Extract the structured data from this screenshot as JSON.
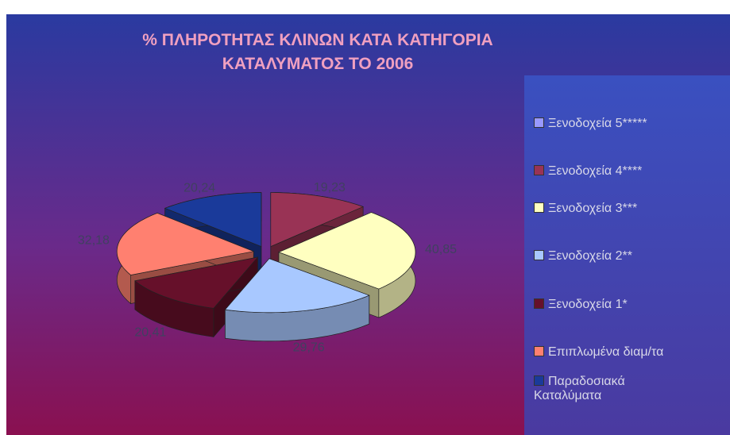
{
  "chart_data": {
    "type": "pie3d",
    "title": "% ΠΛΗΡΟΤΗΤΑΣ ΚΛΙΝΩΝ ΚΑΤΑ ΚΑΤΗΓΟΡΙΑ ΚΑΤΑΛΥΜΑΤΟΣ ΤΟ 2006",
    "categories": [
      "Ξενοδοχεία 5*****",
      "Ξενοδοχεία 4****",
      "Ξενοδοχεία 3***",
      "Ξενοδοχεία 2**",
      "Ξενοδοχεία 1*",
      "Επιπλωμένα διαμ/τα",
      "Παραδοσιακά Καταλύματα"
    ],
    "values": [
      null,
      19.23,
      40.85,
      29.76,
      20.41,
      32.18,
      20.24
    ],
    "value_labels": [
      null,
      "19,23",
      "40,85",
      "29,76",
      "20,41",
      "32,18",
      "20,24"
    ],
    "colors": [
      "#9999ff",
      "#993355",
      "#ffffc0",
      "#a8c8ff",
      "#66102a",
      "#ff8070",
      "#1a3a9a"
    ],
    "legend": "right"
  }
}
